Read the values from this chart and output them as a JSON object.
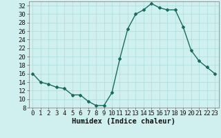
{
  "x": [
    0,
    1,
    2,
    3,
    4,
    5,
    6,
    7,
    8,
    9,
    10,
    11,
    12,
    13,
    14,
    15,
    16,
    17,
    18,
    19,
    20,
    21,
    22,
    23
  ],
  "y": [
    16,
    14,
    13.5,
    12.8,
    12.5,
    11,
    11,
    9.5,
    8.5,
    8.5,
    11.5,
    19.5,
    26.5,
    30,
    31,
    32.5,
    31.5,
    31,
    31,
    27,
    21.5,
    19,
    17.5,
    16
  ],
  "line_color": "#1a6b5e",
  "marker": "D",
  "marker_size": 2.0,
  "bg_color": "#cff0ee",
  "grid_color": "#aaddda",
  "xlabel": "Humidex (Indice chaleur)",
  "ylim": [
    8,
    33
  ],
  "xlim": [
    -0.5,
    23.5
  ],
  "yticks": [
    8,
    10,
    12,
    14,
    16,
    18,
    20,
    22,
    24,
    26,
    28,
    30,
    32
  ],
  "xticks": [
    0,
    1,
    2,
    3,
    4,
    5,
    6,
    7,
    8,
    9,
    10,
    11,
    12,
    13,
    14,
    15,
    16,
    17,
    18,
    19,
    20,
    21,
    22,
    23
  ],
  "tick_fontsize": 6.5,
  "xlabel_fontsize": 7.5,
  "line_width": 1.0
}
